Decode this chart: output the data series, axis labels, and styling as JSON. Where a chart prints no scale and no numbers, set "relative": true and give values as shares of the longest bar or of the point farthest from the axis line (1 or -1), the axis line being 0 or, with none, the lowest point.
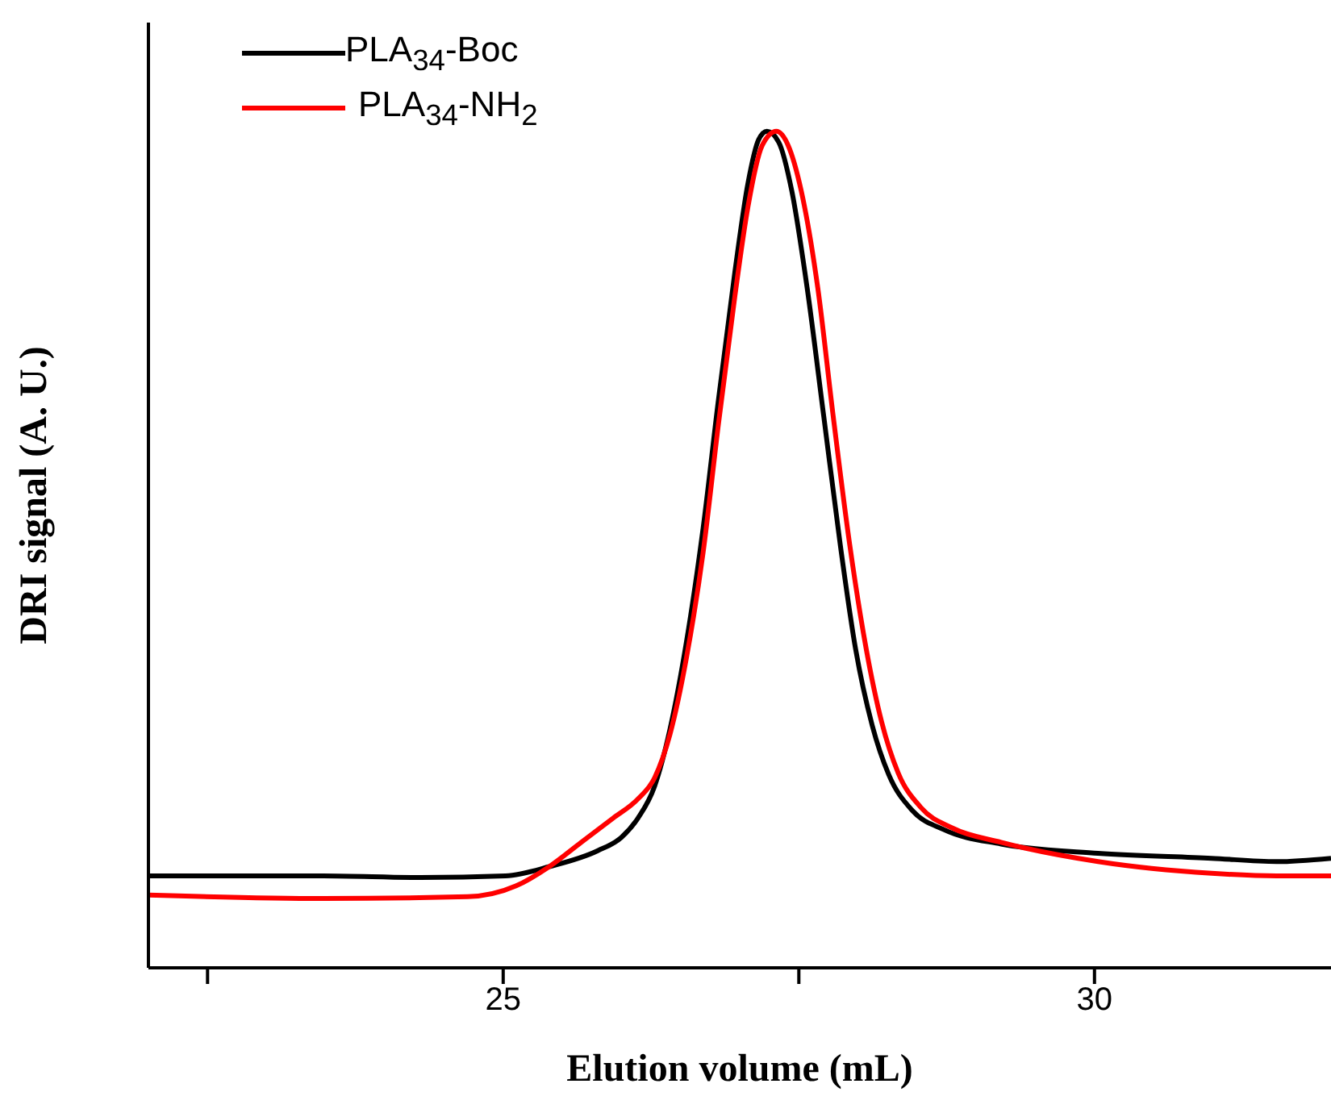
{
  "chart_data": {
    "type": "line",
    "relative": true,
    "xlabel": "Elution volume (mL)",
    "ylabel": "DRI signal (A. U.)",
    "xlim": [
      22,
      32
    ],
    "xticks": [
      {
        "value": 22.5,
        "label": null
      },
      25,
      {
        "value": 27.5,
        "label": null
      },
      30
    ],
    "legend": "top left",
    "grid": false,
    "line_style": "solid",
    "marker": "none",
    "series": [
      {
        "name": "PLA$_{34}$-Boc",
        "color": "#000000",
        "x": [
          22.0,
          23.48,
          24.3,
          25.02,
          25.39,
          25.8,
          26.0,
          26.14,
          26.28,
          26.41,
          26.55,
          26.69,
          26.82,
          26.96,
          27.07,
          27.16,
          27.23,
          27.33,
          27.44,
          27.57,
          27.71,
          27.85,
          27.98,
          28.12,
          28.26,
          28.46,
          28.73,
          29.21,
          30.03,
          30.99,
          31.54,
          32.0
        ],
        "values": [
          0.11,
          0.11,
          0.108,
          0.11,
          0.121,
          0.14,
          0.156,
          0.179,
          0.217,
          0.285,
          0.39,
          0.525,
          0.679,
          0.833,
          0.938,
          0.99,
          1.0,
          0.987,
          0.929,
          0.813,
          0.66,
          0.506,
          0.381,
          0.29,
          0.231,
          0.188,
          0.165,
          0.148,
          0.137,
          0.131,
          0.127,
          0.131
        ]
      },
      {
        "name": "PLA$_{34}$-NH$_{2}$",
        "color": "#ff0000",
        "x": [
          22.0,
          23.48,
          24.7,
          25.11,
          25.39,
          25.66,
          25.93,
          26.14,
          26.28,
          26.41,
          26.55,
          26.69,
          26.82,
          26.96,
          27.07,
          27.19,
          27.31,
          27.41,
          27.52,
          27.66,
          27.79,
          27.93,
          28.07,
          28.2,
          28.34,
          28.53,
          28.8,
          29.21,
          30.03,
          30.99,
          31.54,
          32.0
        ],
        "values": [
          0.087,
          0.083,
          0.085,
          0.098,
          0.121,
          0.15,
          0.179,
          0.202,
          0.227,
          0.279,
          0.371,
          0.496,
          0.65,
          0.804,
          0.91,
          0.983,
          1.0,
          0.983,
          0.929,
          0.813,
          0.66,
          0.506,
          0.381,
          0.294,
          0.233,
          0.192,
          0.167,
          0.15,
          0.127,
          0.113,
          0.11,
          0.11
        ]
      }
    ]
  }
}
